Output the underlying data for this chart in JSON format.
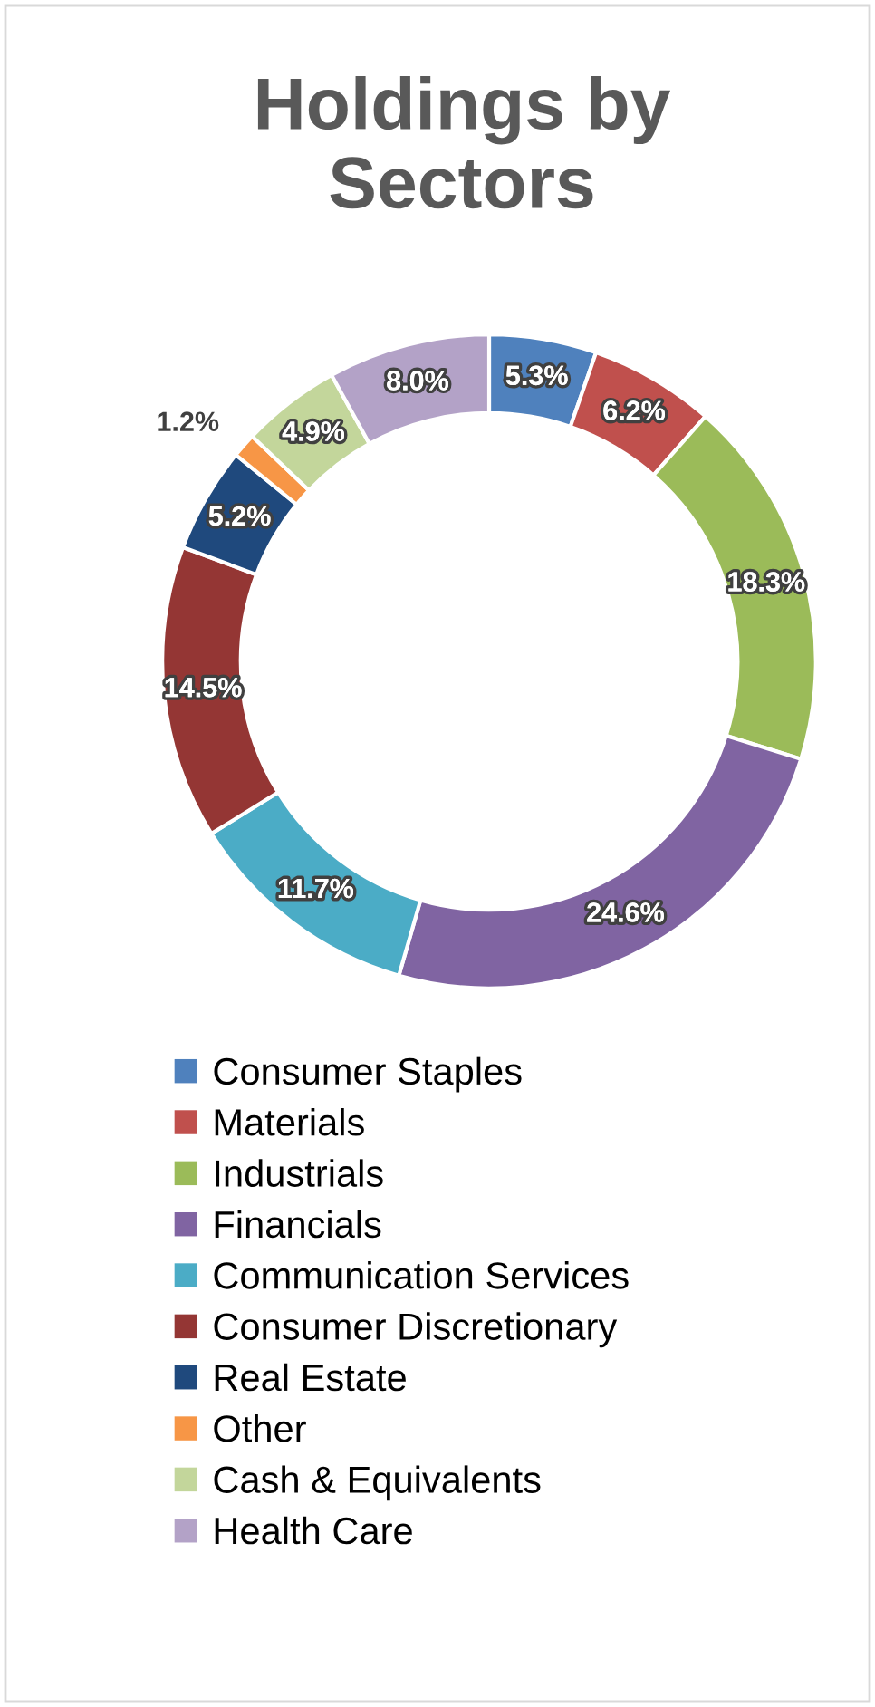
{
  "chart_data": {
    "type": "donut",
    "title": "Holdings by\nSectors",
    "categories": [
      "Consumer Staples",
      "Materials",
      "Industrials",
      "Financials",
      "Communication Services",
      "Consumer Discretionary",
      "Real Estate",
      "Other",
      "Cash & Equivalents",
      "Health Care"
    ],
    "values": [
      5.3,
      6.2,
      18.3,
      24.6,
      11.7,
      14.5,
      5.2,
      1.2,
      4.9,
      8.0
    ],
    "colors": [
      "#4f81bd",
      "#c0504d",
      "#9bbb59",
      "#8064a2",
      "#4bacc6",
      "#943634",
      "#1f497d",
      "#f79646",
      "#c3d69b",
      "#b3a2c7"
    ],
    "value_labels": [
      "5.3%",
      "6.2%",
      "18.3%",
      "24.6%",
      "11.7%",
      "14.5%",
      "5.2%",
      "1.2%",
      "4.9%",
      "8.0%"
    ],
    "legend": "bottom"
  }
}
